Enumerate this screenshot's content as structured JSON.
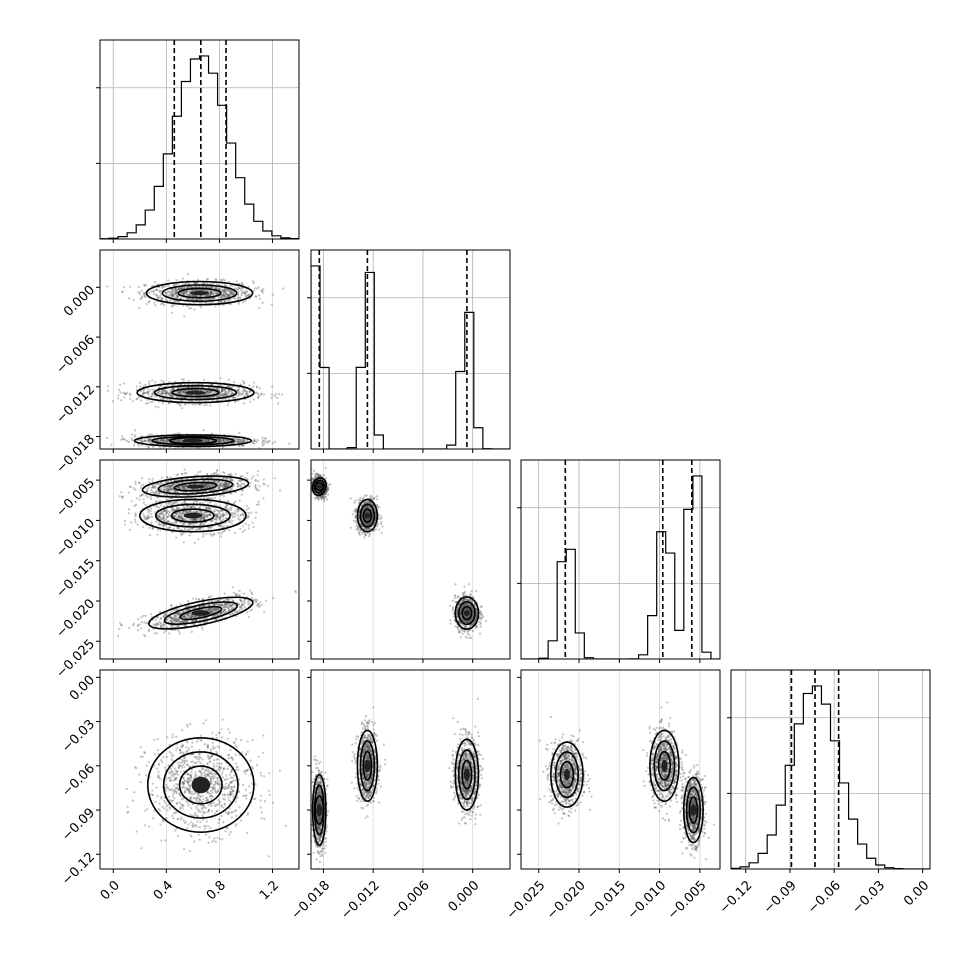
{
  "chart_data": {
    "type": "corner",
    "parameters": [
      {
        "range": [
          -0.1,
          1.4
        ],
        "ticks": [
          "0.0",
          "0.4",
          "0.8",
          "1.2"
        ],
        "tick_values": [
          0.0,
          0.4,
          0.8,
          1.2
        ],
        "quantiles": [
          0.46,
          0.66,
          0.85
        ],
        "modes": [
          {
            "mean": 0.66,
            "sd": 0.2,
            "weight": 1.0
          }
        ]
      },
      {
        "range": [
          -0.0195,
          0.0045
        ],
        "ticks": [
          "-0.018",
          "-0.012",
          "-0.006",
          "0.000"
        ],
        "tick_values": [
          -0.018,
          -0.012,
          -0.006,
          0.0
        ],
        "quantiles": [
          -0.0185,
          -0.0127,
          -0.0007
        ],
        "modes": [
          {
            "mean": -0.0185,
            "sd": 0.00035,
            "weight": 0.4
          },
          {
            "mean": -0.0127,
            "sd": 0.0006,
            "weight": 0.32
          },
          {
            "mean": -0.0007,
            "sd": 0.0007,
            "weight": 0.28
          }
        ]
      },
      {
        "range": [
          -0.0272,
          -0.0025
        ],
        "ticks": [
          "-0.025",
          "-0.020",
          "-0.015",
          "-0.010",
          "-0.005"
        ],
        "tick_values": [
          -0.025,
          -0.02,
          -0.015,
          -0.01,
          -0.005
        ],
        "quantiles": [
          -0.0217,
          -0.0096,
          -0.006
        ],
        "modes": [
          {
            "mean": -0.0215,
            "sd": 0.0009,
            "weight": 0.28
          },
          {
            "mean": -0.0094,
            "sd": 0.001,
            "weight": 0.34
          },
          {
            "mean": -0.0058,
            "sd": 0.0006,
            "weight": 0.38
          }
        ]
      },
      {
        "range": [
          -0.13,
          0.005
        ],
        "ticks": [
          "-0.12",
          "-0.09",
          "-0.06",
          "-0.03",
          "0.00"
        ],
        "tick_values": [
          -0.12,
          -0.09,
          -0.06,
          -0.03,
          0.0
        ],
        "quantiles": [
          -0.089,
          -0.073,
          -0.057
        ],
        "modes": [
          {
            "mean": -0.073,
            "sd": 0.016,
            "weight": 1.0
          }
        ]
      }
    ],
    "joint_clusters": [
      {
        "params": [
          0,
          1
        ],
        "clusters": [
          {
            "center": [
              0.65,
              -0.0007
            ],
            "spread": [
              0.2,
              0.0007
            ],
            "corr": 0.0
          },
          {
            "center": [
              0.62,
              -0.0127
            ],
            "spread": [
              0.22,
              0.0006
            ],
            "corr": 0.0
          },
          {
            "center": [
              0.6,
              -0.0185
            ],
            "spread": [
              0.22,
              0.00035
            ],
            "corr": 0.0
          }
        ]
      },
      {
        "params": [
          0,
          2
        ],
        "clusters": [
          {
            "center": [
              0.62,
              -0.0058
            ],
            "spread": [
              0.2,
              0.0007
            ],
            "corr": 0.3
          },
          {
            "center": [
              0.6,
              -0.0094
            ],
            "spread": [
              0.2,
              0.001
            ],
            "corr": 0.0
          },
          {
            "center": [
              0.66,
              -0.0215
            ],
            "spread": [
              0.2,
              0.001
            ],
            "corr": 0.7
          }
        ]
      },
      {
        "params": [
          0,
          3
        ],
        "clusters": [
          {
            "center": [
              0.66,
              -0.073
            ],
            "spread": [
              0.2,
              0.016
            ],
            "corr": 0.0
          }
        ]
      },
      {
        "params": [
          1,
          2
        ],
        "clusters": [
          {
            "center": [
              -0.0185,
              -0.0058
            ],
            "spread": [
              0.0004,
              0.0006
            ],
            "corr": -0.2
          },
          {
            "center": [
              -0.0127,
              -0.0094
            ],
            "spread": [
              0.0006,
              0.001
            ],
            "corr": 0.0
          },
          {
            "center": [
              -0.0007,
              -0.0215
            ],
            "spread": [
              0.0007,
              0.001
            ],
            "corr": 0.0
          }
        ]
      },
      {
        "params": [
          1,
          3
        ],
        "clusters": [
          {
            "center": [
              -0.0185,
              -0.09
            ],
            "spread": [
              0.0004,
              0.012
            ],
            "corr": 0.0
          },
          {
            "center": [
              -0.0127,
              -0.06
            ],
            "spread": [
              0.0006,
              0.012
            ],
            "corr": 0.0
          },
          {
            "center": [
              -0.0007,
              -0.066
            ],
            "spread": [
              0.0007,
              0.012
            ],
            "corr": 0.0
          }
        ]
      },
      {
        "params": [
          2,
          3
        ],
        "clusters": [
          {
            "center": [
              -0.0215,
              -0.066
            ],
            "spread": [
              0.001,
              0.011
            ],
            "corr": 0.0
          },
          {
            "center": [
              -0.0094,
              -0.06
            ],
            "spread": [
              0.0009,
              0.012
            ],
            "corr": 0.0
          },
          {
            "center": [
              -0.0058,
              -0.09
            ],
            "spread": [
              0.0006,
              0.011
            ],
            "corr": 0.0
          }
        ]
      }
    ],
    "grid": true
  }
}
